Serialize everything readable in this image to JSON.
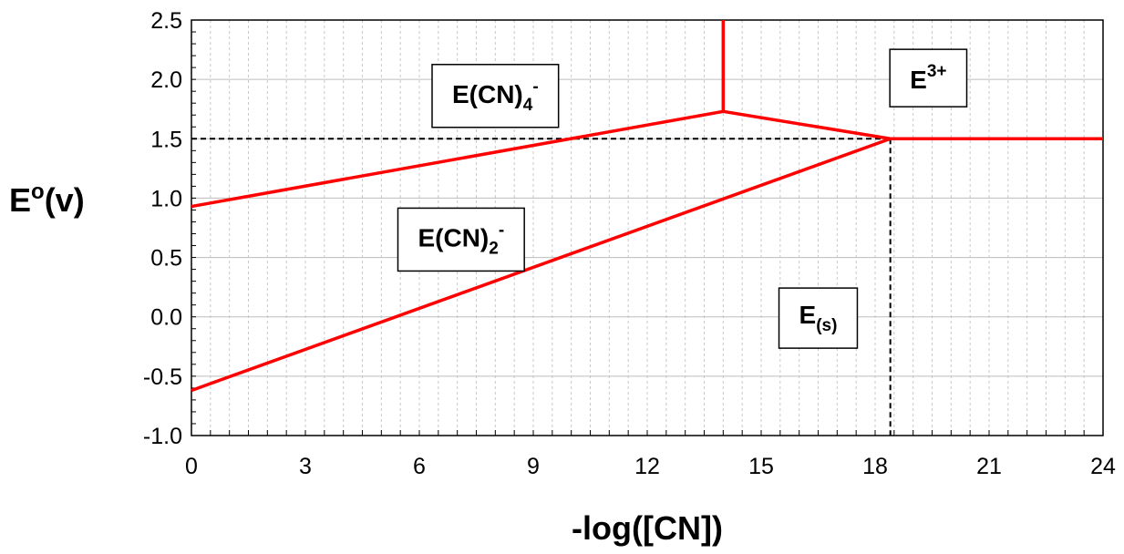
{
  "chart_data": {
    "type": "line",
    "xlabel": "-log([CN])",
    "ylabel": {
      "base": "E",
      "sup": "o",
      "tail": "(v)"
    },
    "xlim": [
      0,
      24
    ],
    "ylim": [
      -1.0,
      2.5
    ],
    "xticks": [
      0,
      3,
      6,
      9,
      12,
      15,
      18,
      21,
      24
    ],
    "yticks": [
      -1.0,
      -0.5,
      0.0,
      0.5,
      1.0,
      1.5,
      2.0,
      2.5
    ],
    "ytick_labels": [
      "-1.0",
      "-0.5",
      "0.0",
      "0.5",
      "1.0",
      "1.5",
      "2.0",
      "2.5"
    ],
    "x_minor_step": 0.5,
    "y_minor_step": 0.1,
    "grid": true,
    "line_color": "#ff0000",
    "guide_color": "#000000",
    "series": [
      {
        "values": [
          [
            0,
            0.93
          ],
          [
            14,
            1.73
          ]
        ]
      },
      {
        "values": [
          [
            0,
            -0.62
          ],
          [
            18.4,
            1.5
          ]
        ]
      },
      {
        "values": [
          [
            14,
            1.73
          ],
          [
            18.4,
            1.5
          ]
        ]
      },
      {
        "values": [
          [
            14,
            1.73
          ],
          [
            14,
            2.5
          ]
        ]
      },
      {
        "values": [
          [
            18.4,
            1.5
          ],
          [
            24,
            1.5
          ]
        ]
      }
    ],
    "guides": [
      {
        "values": [
          [
            0,
            1.5
          ],
          [
            18.4,
            1.5
          ]
        ]
      },
      {
        "values": [
          [
            18.4,
            1.5
          ],
          [
            18.4,
            -1.0
          ]
        ]
      }
    ],
    "annotations": [
      {
        "base": "E(CN)",
        "sub": "4",
        "sup": "-",
        "x": 8,
        "y": 1.88
      },
      {
        "base": "E",
        "sup": "3+",
        "x": 19.4,
        "y": 2.0
      },
      {
        "base": "E(CN)",
        "sub": "2",
        "sup": "-",
        "x": 7.1,
        "y": 0.67
      },
      {
        "base": "E",
        "sub": "(s)",
        "x": 16.5,
        "y": 0.02
      }
    ]
  }
}
